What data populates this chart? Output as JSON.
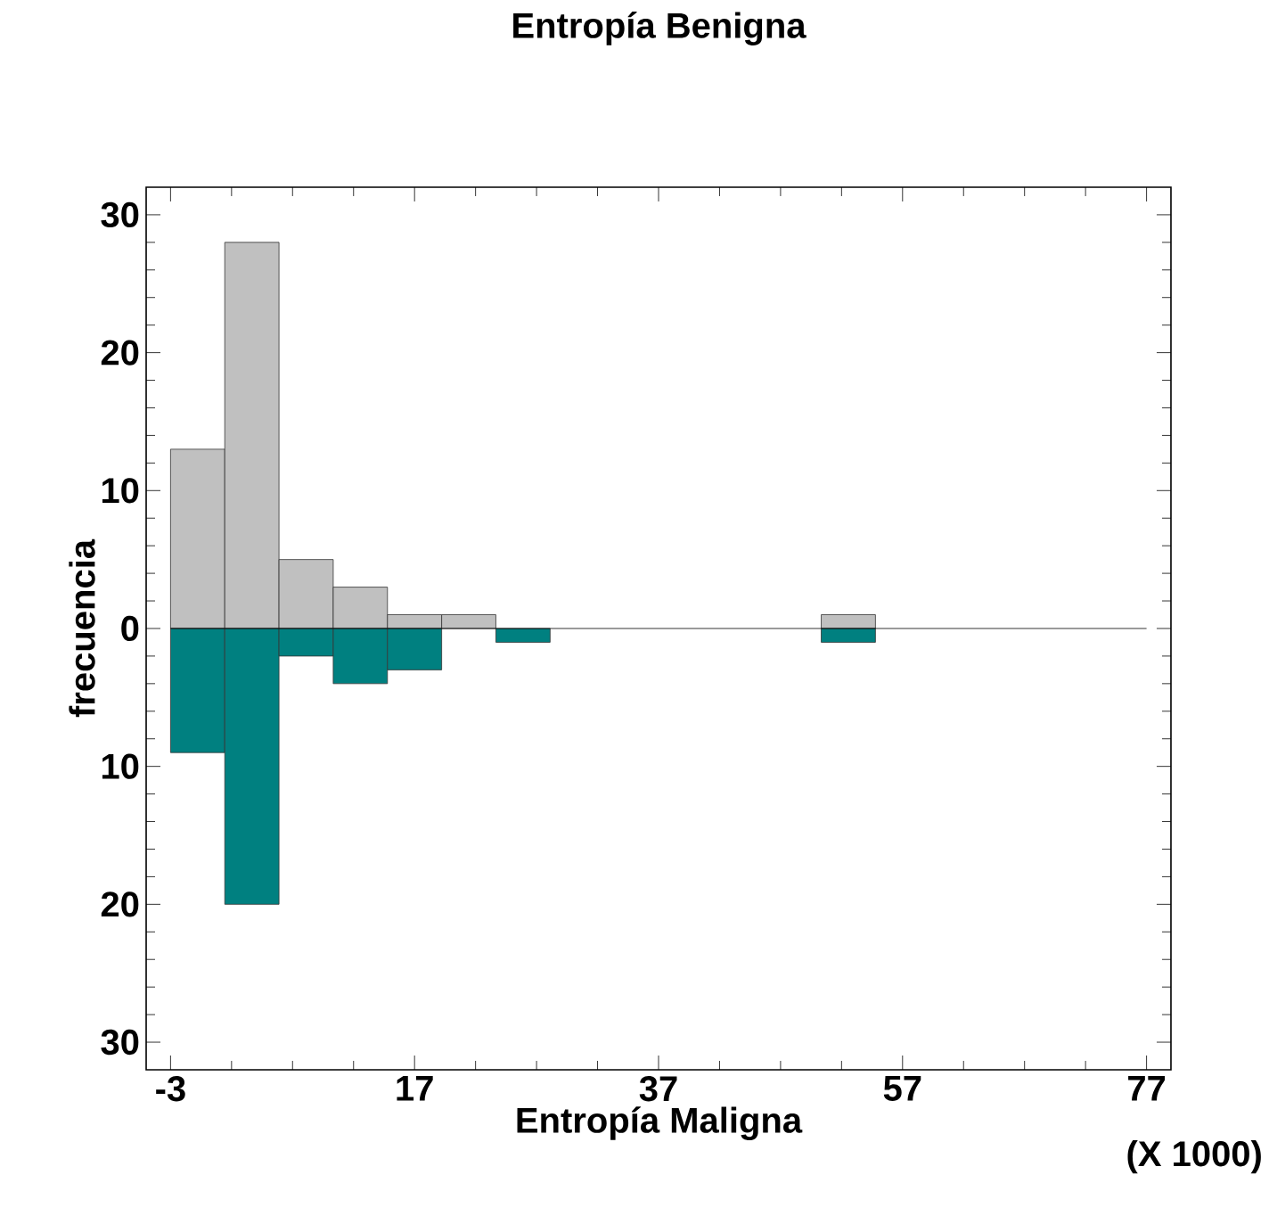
{
  "chart_data": {
    "type": "histogram",
    "title": "Entropía Benigna",
    "xlabel": "Entropía Maligna",
    "ylabel": "frecuencia",
    "annotations": [
      "(X 1000)"
    ],
    "bins": [
      -3,
      1.444,
      5.889,
      10.333,
      14.778,
      19.222,
      23.667,
      28.111,
      32.556,
      37,
      41.444,
      45.889,
      50.333,
      54.778,
      59.222,
      63.667,
      68.111,
      72.556,
      77
    ],
    "series": [
      {
        "color": "#c0c0c0",
        "values": [
          13,
          28,
          5,
          3,
          1,
          1,
          0,
          0,
          0,
          0,
          0,
          0,
          1,
          0,
          0,
          0,
          0,
          0
        ]
      },
      {
        "color": "#008080",
        "values": [
          -9,
          -20,
          -2,
          -4,
          -3,
          0,
          -1,
          0,
          0,
          0,
          0,
          0,
          -1,
          0,
          0,
          0,
          0,
          0
        ]
      }
    ],
    "xlim": [
      -5,
      79
    ],
    "ylim": [
      -32,
      32
    ],
    "xticks": [
      -3,
      17,
      37,
      57,
      77
    ],
    "yticks": [
      {
        "value": -30,
        "label": "30"
      },
      {
        "value": -20,
        "label": "20"
      },
      {
        "value": -10,
        "label": "10"
      },
      0,
      10,
      20,
      30
    ],
    "ref_lines": [
      {
        "axis": "y",
        "value": 0
      }
    ]
  }
}
